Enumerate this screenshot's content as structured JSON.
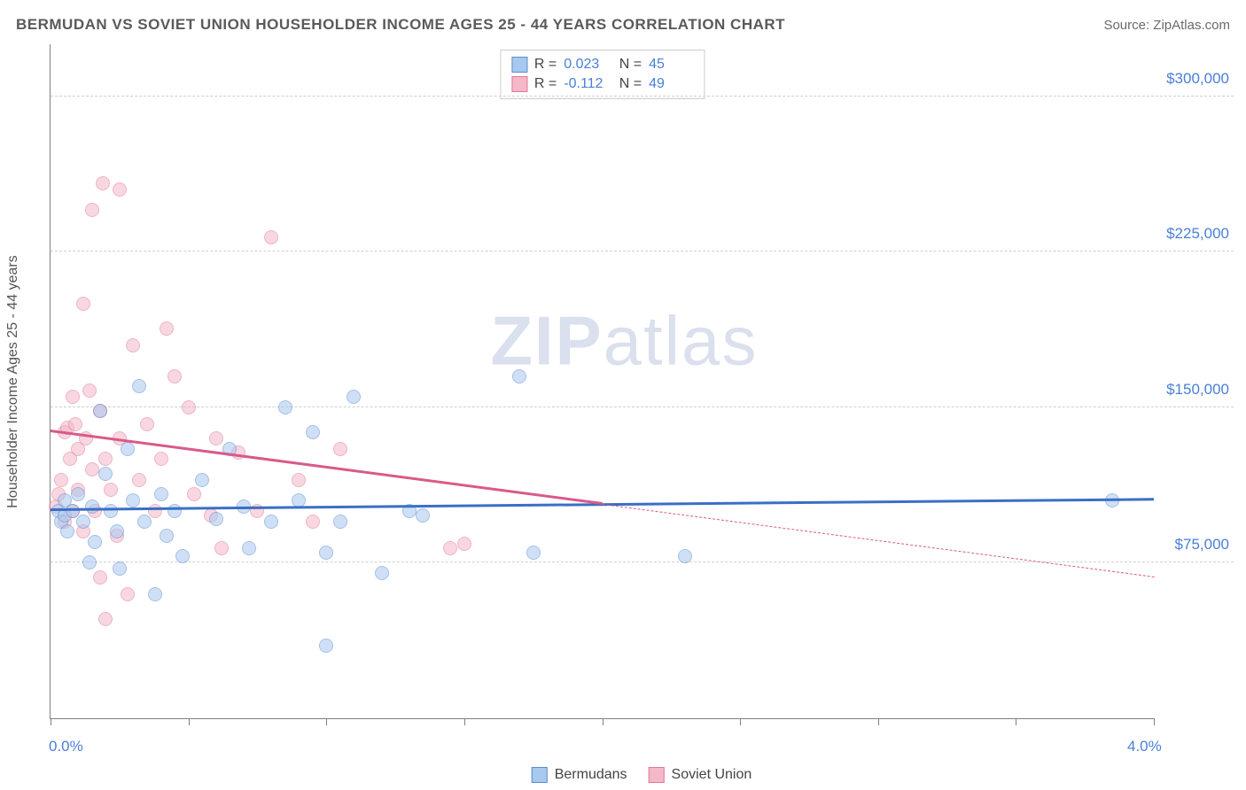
{
  "header": {
    "title": "BERMUDAN VS SOVIET UNION HOUSEHOLDER INCOME AGES 25 - 44 YEARS CORRELATION CHART",
    "source": "Source: ZipAtlas.com"
  },
  "chart": {
    "type": "scatter",
    "background_color": "#ffffff",
    "grid_color": "#d0d0d0",
    "axis_color": "#808080",
    "y_axis_title": "Householder Income Ages 25 - 44 years",
    "xlim": [
      0.0,
      4.0
    ],
    "ylim": [
      0,
      325000
    ],
    "x_ticks": [
      0.0,
      0.5,
      1.0,
      1.5,
      2.0,
      2.5,
      3.0,
      3.5,
      4.0
    ],
    "x_tick_labels": {
      "0": "0.0%",
      "4": "4.0%"
    },
    "y_ticks": [
      75000,
      150000,
      225000,
      300000
    ],
    "y_tick_labels": [
      "$75,000",
      "$150,000",
      "$225,000",
      "$300,000"
    ],
    "label_color": "#4a7fd8",
    "label_fontsize": 17,
    "marker_size": 16,
    "marker_opacity": 0.55,
    "watermark": "ZIPatlas",
    "series": [
      {
        "name": "Bermudans",
        "fill": "#a8c8ef",
        "stroke": "#5a8ed0",
        "trend_color": "#3a6fc5",
        "trend": {
          "x1": 0.0,
          "y1": 100000,
          "x2": 4.0,
          "y2": 105000,
          "solid_to_x": 4.0
        },
        "points": [
          [
            0.03,
            100000
          ],
          [
            0.04,
            95000
          ],
          [
            0.05,
            98000
          ],
          [
            0.05,
            105000
          ],
          [
            0.06,
            90000
          ],
          [
            0.08,
            100000
          ],
          [
            0.1,
            108000
          ],
          [
            0.12,
            95000
          ],
          [
            0.14,
            75000
          ],
          [
            0.15,
            102000
          ],
          [
            0.16,
            85000
          ],
          [
            0.18,
            148000
          ],
          [
            0.2,
            118000
          ],
          [
            0.22,
            100000
          ],
          [
            0.24,
            90000
          ],
          [
            0.25,
            72000
          ],
          [
            0.28,
            130000
          ],
          [
            0.3,
            105000
          ],
          [
            0.32,
            160000
          ],
          [
            0.34,
            95000
          ],
          [
            0.38,
            60000
          ],
          [
            0.4,
            108000
          ],
          [
            0.42,
            88000
          ],
          [
            0.45,
            100000
          ],
          [
            0.48,
            78000
          ],
          [
            0.55,
            115000
          ],
          [
            0.6,
            96000
          ],
          [
            0.65,
            130000
          ],
          [
            0.7,
            102000
          ],
          [
            0.72,
            82000
          ],
          [
            0.8,
            95000
          ],
          [
            0.85,
            150000
          ],
          [
            0.9,
            105000
          ],
          [
            0.95,
            138000
          ],
          [
            1.0,
            80000
          ],
          [
            1.05,
            95000
          ],
          [
            1.1,
            155000
          ],
          [
            1.2,
            70000
          ],
          [
            1.3,
            100000
          ],
          [
            1.35,
            98000
          ],
          [
            1.0,
            35000
          ],
          [
            1.7,
            165000
          ],
          [
            1.75,
            80000
          ],
          [
            2.3,
            78000
          ],
          [
            3.85,
            105000
          ]
        ]
      },
      {
        "name": "Soviet Union",
        "fill": "#f5b8c8",
        "stroke": "#e07898",
        "trend_color": "#d85a8a",
        "trend": {
          "x1": 0.0,
          "y1": 138000,
          "x2": 4.0,
          "y2": 68000,
          "solid_to_x": 2.0
        },
        "points": [
          [
            0.02,
            102000
          ],
          [
            0.03,
            108000
          ],
          [
            0.04,
            115000
          ],
          [
            0.05,
            138000
          ],
          [
            0.05,
            95000
          ],
          [
            0.06,
            140000
          ],
          [
            0.07,
            125000
          ],
          [
            0.08,
            100000
          ],
          [
            0.08,
            155000
          ],
          [
            0.09,
            142000
          ],
          [
            0.1,
            110000
          ],
          [
            0.1,
            130000
          ],
          [
            0.12,
            200000
          ],
          [
            0.12,
            90000
          ],
          [
            0.13,
            135000
          ],
          [
            0.14,
            158000
          ],
          [
            0.15,
            120000
          ],
          [
            0.15,
            245000
          ],
          [
            0.16,
            100000
          ],
          [
            0.18,
            148000
          ],
          [
            0.18,
            68000
          ],
          [
            0.19,
            258000
          ],
          [
            0.2,
            125000
          ],
          [
            0.2,
            48000
          ],
          [
            0.22,
            110000
          ],
          [
            0.24,
            88000
          ],
          [
            0.25,
            255000
          ],
          [
            0.25,
            135000
          ],
          [
            0.28,
            60000
          ],
          [
            0.3,
            180000
          ],
          [
            0.32,
            115000
          ],
          [
            0.35,
            142000
          ],
          [
            0.38,
            100000
          ],
          [
            0.4,
            125000
          ],
          [
            0.42,
            188000
          ],
          [
            0.45,
            165000
          ],
          [
            0.5,
            150000
          ],
          [
            0.52,
            108000
          ],
          [
            0.58,
            98000
          ],
          [
            0.6,
            135000
          ],
          [
            0.62,
            82000
          ],
          [
            0.68,
            128000
          ],
          [
            0.75,
            100000
          ],
          [
            0.8,
            232000
          ],
          [
            0.9,
            115000
          ],
          [
            0.95,
            95000
          ],
          [
            1.05,
            130000
          ],
          [
            1.45,
            82000
          ],
          [
            1.5,
            84000
          ]
        ]
      }
    ],
    "stats": [
      {
        "r": "0.023",
        "n": "45",
        "series_idx": 0
      },
      {
        "r": "-0.112",
        "n": "49",
        "series_idx": 1
      }
    ]
  }
}
